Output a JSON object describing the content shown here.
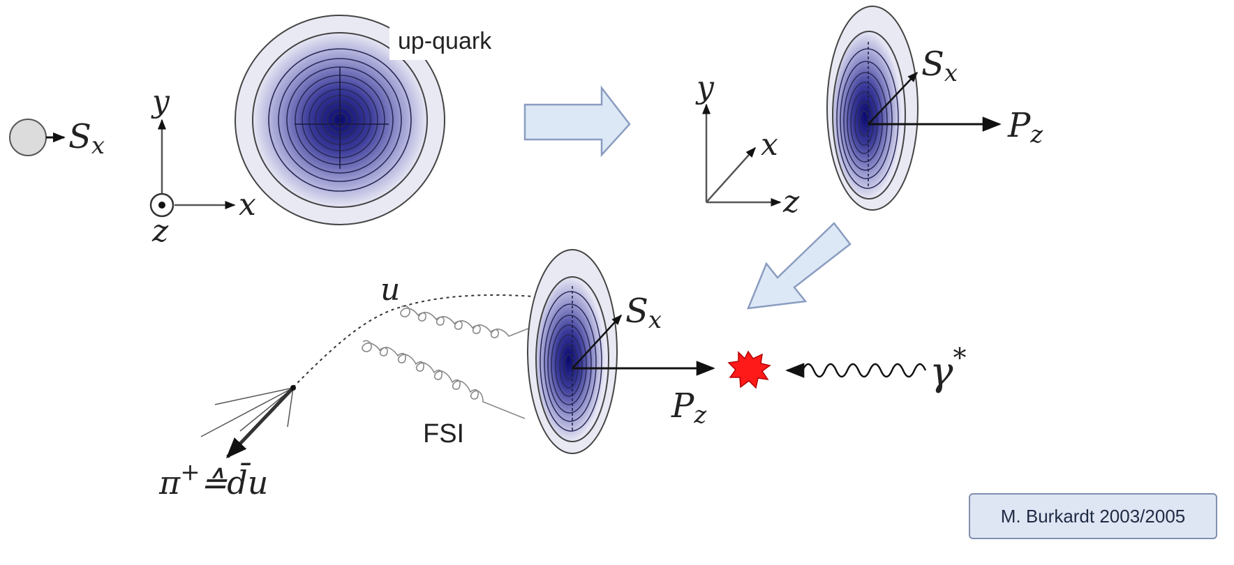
{
  "labels": {
    "spin_x": "S",
    "spin_sub": "x",
    "axis_y": "y",
    "axis_x": "x",
    "axis_z": "z",
    "up_quark": "up-quark",
    "momentum": "P",
    "momentum_sub": "z",
    "quark_u": "u",
    "fsi": "FSI",
    "pion": "π",
    "pion_sup": "+",
    "pion_eq": "≙",
    "pion_d": "d̄",
    "pion_u": "u",
    "photon": "γ",
    "photon_sup": "*"
  },
  "credit": "M. Burkardt 2003/2005",
  "colors": {
    "density_core": "#0a0a6e",
    "density_edge": "#e6e6f4",
    "arrow_fill": "#dde8f6",
    "arrow_stroke": "#8a9cc0",
    "burst": "#ff1a1a",
    "nucleon": "#dcdcdc"
  }
}
